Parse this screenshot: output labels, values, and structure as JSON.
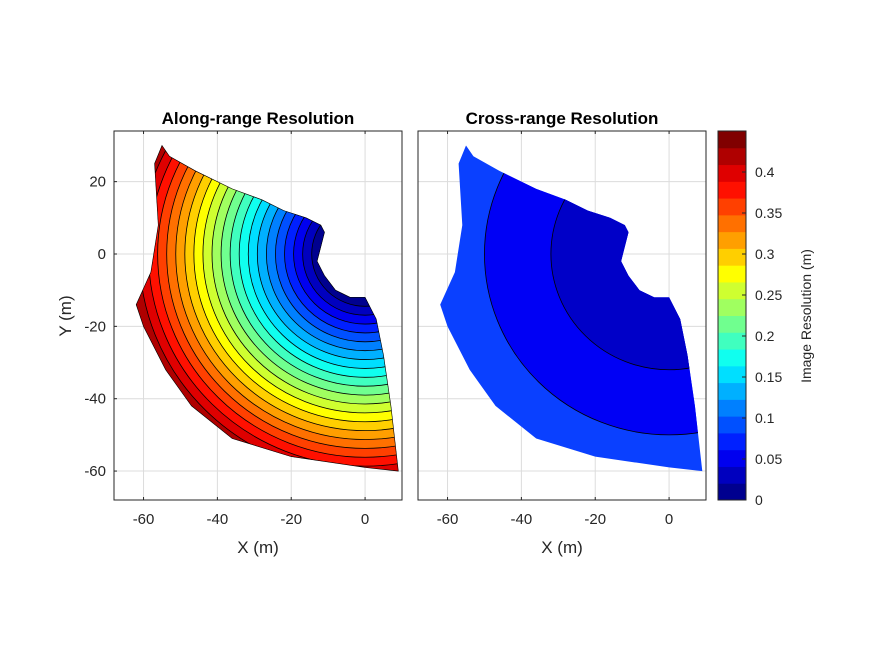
{
  "chart_data": [
    {
      "type": "contour",
      "title": "Along-range Resolution",
      "xlabel": "X (m)",
      "ylabel": "Y (m)",
      "xlim": [
        -68,
        10
      ],
      "ylim": [
        -68,
        34
      ],
      "xticks": [
        -60,
        -40,
        -20,
        0
      ],
      "yticks": [
        20,
        0,
        -20,
        -40,
        -60
      ],
      "grid": true,
      "field": "along",
      "sensor_origin": [
        0,
        0
      ],
      "inner_edge": [
        [
          0,
          -12
        ],
        [
          -4,
          -12
        ],
        [
          -8,
          -10
        ],
        [
          -11,
          -6
        ],
        [
          -13,
          -2
        ],
        [
          -11,
          6
        ],
        [
          -12,
          8
        ],
        [
          -16,
          10
        ],
        [
          -22,
          12
        ],
        [
          -28,
          15
        ],
        [
          -36,
          18
        ],
        [
          -46,
          23
        ],
        [
          -53,
          27
        ],
        [
          -55,
          30
        ]
      ],
      "outer_edge": [
        [
          9,
          -60
        ],
        [
          0,
          -59
        ],
        [
          -20,
          -56
        ],
        [
          -36,
          -51
        ],
        [
          -47,
          -42
        ],
        [
          -54,
          -32
        ],
        [
          -60,
          -20
        ],
        [
          -62,
          -14
        ],
        [
          -58,
          -5
        ],
        [
          -56,
          8
        ],
        [
          -57,
          25
        ]
      ],
      "right_edge": [
        [
          9,
          -60
        ],
        [
          7,
          -42
        ],
        [
          5,
          -28
        ],
        [
          3,
          -18
        ],
        [
          0,
          -12
        ]
      ]
    },
    {
      "type": "contour",
      "title": "Cross-range Resolution",
      "xlabel": "X (m)",
      "ylabel": "",
      "xlim": [
        -68,
        10
      ],
      "ylim": [
        -68,
        34
      ],
      "xticks": [
        -60,
        -40,
        -20,
        0
      ],
      "yticks": [],
      "grid": true,
      "field": "cross",
      "sensor_origin": [
        0,
        0
      ],
      "contour_radii_m": [
        32,
        50
      ]
    }
  ],
  "colorbar": {
    "label": "Image Resolution (m)",
    "range": [
      0,
      0.45
    ],
    "ticks": [
      "0",
      "0.05",
      "0.1",
      "0.15",
      "0.2",
      "0.25",
      "0.3",
      "0.35",
      "0.4"
    ],
    "levels": 18,
    "colormap": "jet",
    "colors": [
      "#00008f",
      "#0000bf",
      "#0000ef",
      "#0020ff",
      "#0050ff",
      "#0080ff",
      "#00b0ff",
      "#00dfff",
      "#10ffef",
      "#40ffbf",
      "#70ff8f",
      "#a0ff60",
      "#cfff30",
      "#ffff00",
      "#ffcf00",
      "#ff9f00",
      "#ff7000",
      "#ff4000",
      "#ff1000",
      "#df0000",
      "#af0000",
      "#800000"
    ]
  },
  "labels": {
    "left_title": "Along-range Resolution",
    "right_title": "Cross-range Resolution",
    "left_xlabel": "X (m)",
    "right_xlabel": "X (m)",
    "ylabel": "Y (m)",
    "cb_label": "Image Resolution (m)"
  }
}
